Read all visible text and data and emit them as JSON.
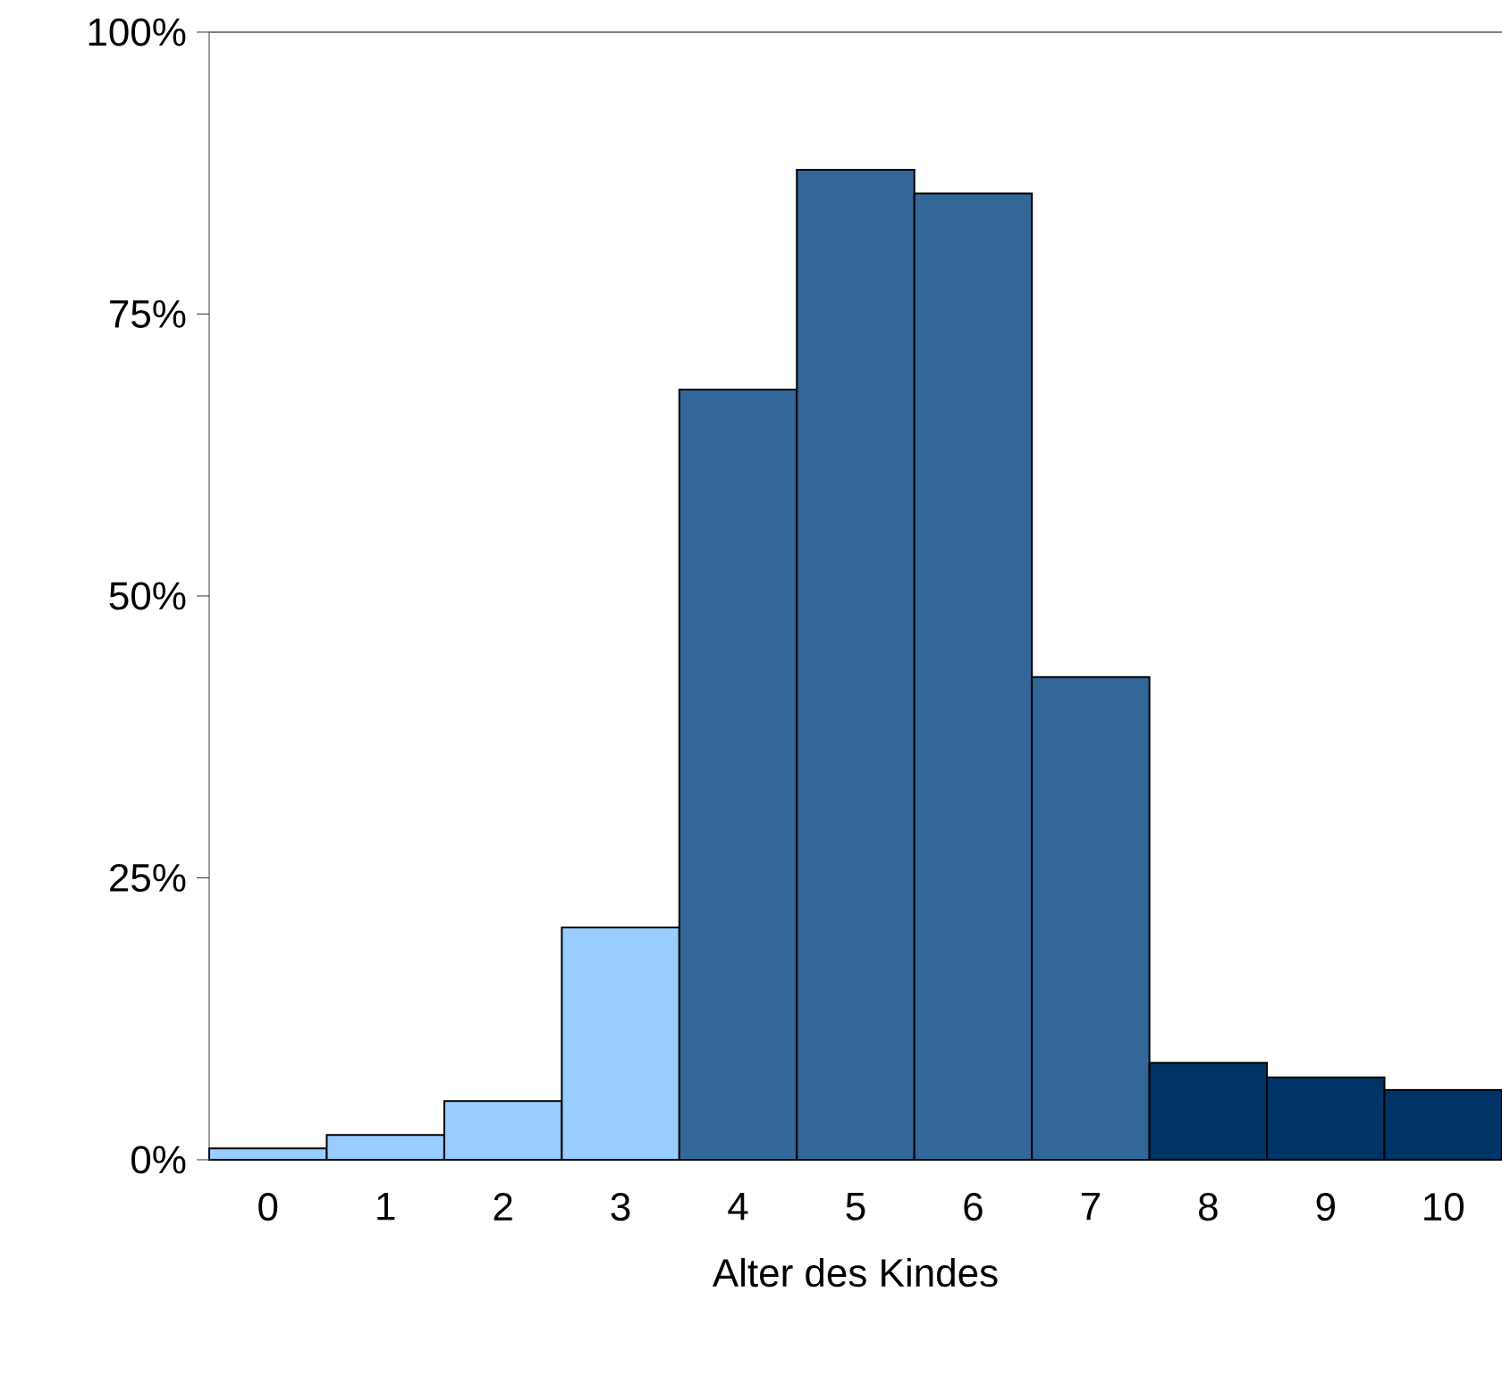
{
  "chart_data": {
    "type": "bar",
    "xlabel": "Alter des Kindes",
    "categories": [
      "0",
      "1",
      "2",
      "3",
      "4",
      "5",
      "6",
      "7",
      "8",
      "9",
      "10"
    ],
    "values": [
      1,
      2.2,
      5.2,
      20.6,
      68.3,
      87.8,
      85.7,
      42.8,
      8.6,
      7.3,
      6.2
    ],
    "colors": [
      "#99ccff",
      "#99ccff",
      "#99ccff",
      "#99ccff",
      "#336699",
      "#336699",
      "#336699",
      "#336699",
      "#003366",
      "#003366",
      "#003366"
    ],
    "ylim": [
      0,
      100
    ],
    "yticks": [
      {
        "value": 0,
        "label": "0%"
      },
      {
        "value": 25,
        "label": "25%"
      },
      {
        "value": 50,
        "label": "50%"
      },
      {
        "value": 75,
        "label": "75%"
      },
      {
        "value": 100,
        "label": "100%"
      }
    ]
  }
}
